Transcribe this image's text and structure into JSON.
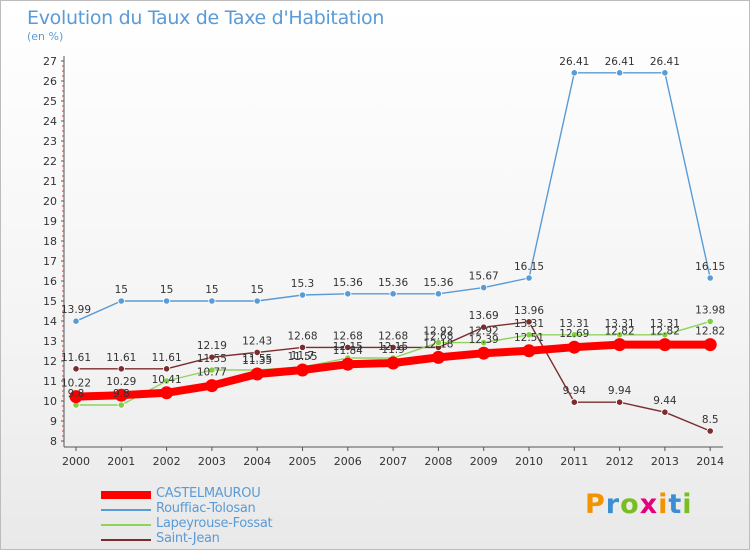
{
  "header": {
    "title": "Evolution du Taux de Taxe d'Habitation",
    "subtitle": "(en %)"
  },
  "logo": {
    "text": "Proxiti",
    "colors": [
      "#f29400",
      "#3a8fd4",
      "#78be20",
      "#e4007c",
      "#f29400",
      "#3a8fd4",
      "#78be20"
    ]
  },
  "chart_data": {
    "type": "line",
    "title": "Evolution du Taux de Taxe d'Habitation",
    "ylabel": "(en %)",
    "xlabel": "",
    "ylim": [
      8,
      27
    ],
    "y_ticks": [
      8,
      9,
      10,
      11,
      12,
      13,
      14,
      15,
      16,
      17,
      18,
      19,
      20,
      21,
      22,
      23,
      24,
      25,
      26,
      27
    ],
    "grid": false,
    "legend_position": "bottom-left",
    "categories": [
      "2000",
      "2001",
      "2002",
      "2003",
      "2004",
      "2005",
      "2006",
      "2007",
      "2008",
      "2009",
      "2010",
      "2011",
      "2012",
      "2013",
      "2014"
    ],
    "series": [
      {
        "name": "CASTELMAUROU",
        "color": "#ff0000",
        "values": [
          10.22,
          10.29,
          10.41,
          10.77,
          11.35,
          11.55,
          11.84,
          11.9,
          12.18,
          12.39,
          12.51,
          12.69,
          12.82,
          12.82,
          12.82
        ],
        "labels": [
          "10.22",
          "10.29",
          "10.41",
          "10.77",
          "11.35",
          "11.55",
          "11.84",
          "11.9",
          "12.18",
          "12.39",
          "12.51",
          "12.69",
          "12.82",
          "12.82",
          "12.82"
        ]
      },
      {
        "name": "Rouffiac-Tolosan",
        "color": "#5a9bd5",
        "values": [
          13.99,
          15,
          15,
          15,
          15,
          15.3,
          15.36,
          15.36,
          15.36,
          15.67,
          16.15,
          26.41,
          26.41,
          26.41,
          16.15
        ],
        "labels": [
          "13.99",
          "15",
          "15",
          "15",
          "15",
          "15.3",
          "15.36",
          "15.36",
          "15.36",
          "15.67",
          "16.15",
          "26.41",
          "26.41",
          "26.41",
          "16.15"
        ]
      },
      {
        "name": "Lapeyrouse-Fossat",
        "color": "#8ed45a",
        "values": [
          9.8,
          9.8,
          11.0,
          11.55,
          11.55,
          11.7,
          12.15,
          12.15,
          12.92,
          12.92,
          13.31,
          13.31,
          13.31,
          13.31,
          13.98
        ],
        "labels": [
          "9.8",
          "9.8",
          "",
          "11.55",
          "11.55",
          "11.7",
          "12.15",
          "12.15",
          "12.92",
          "12.92",
          "13.31",
          "13.31",
          "13.31",
          "13.31",
          "13.98"
        ]
      },
      {
        "name": "Saint-Jean",
        "color": "#7b2d2d",
        "values": [
          11.61,
          11.61,
          11.61,
          12.19,
          12.43,
          12.68,
          12.68,
          12.68,
          12.68,
          13.69,
          13.96,
          9.94,
          9.94,
          9.44,
          8.5
        ],
        "labels": [
          "11.61",
          "11.61",
          "11.61",
          "12.19",
          "12.43",
          "12.68",
          "12.68",
          "12.68",
          "12.68",
          "13.69",
          "13.96",
          "9.94",
          "9.94",
          "9.44",
          "8.5"
        ]
      }
    ]
  }
}
